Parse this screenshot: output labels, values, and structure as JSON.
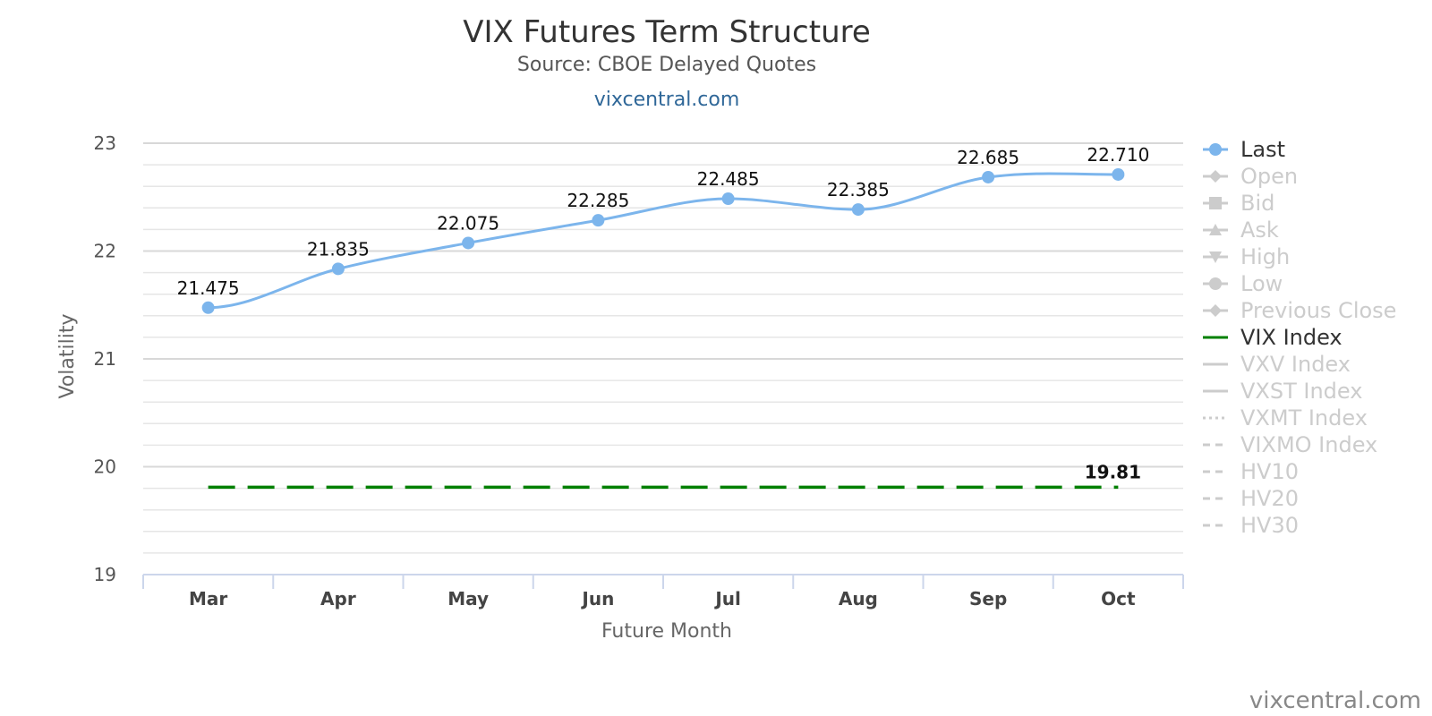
{
  "chart_data": {
    "type": "line",
    "title": "VIX Futures Term Structure",
    "subtitle": "Source: CBOE Delayed Quotes",
    "link": "vixcentral.com",
    "credit": "vixcentral.com",
    "xlabel": "Future Month",
    "ylabel": "Volatility",
    "categories": [
      "Mar",
      "Apr",
      "May",
      "Jun",
      "Jul",
      "Aug",
      "Sep",
      "Oct"
    ],
    "ylim": [
      19,
      23
    ],
    "yticks": [
      19,
      20,
      21,
      22,
      23
    ],
    "grid": true,
    "legend_position": "right",
    "series": [
      {
        "name": "Last",
        "values": [
          21.475,
          21.835,
          22.075,
          22.285,
          22.485,
          22.385,
          22.685,
          22.71
        ],
        "labels": [
          "21.475",
          "21.835",
          "22.075",
          "22.285",
          "22.485",
          "22.385",
          "22.685",
          "22.710"
        ],
        "color": "#7cb5ec",
        "style": "spline-markers"
      },
      {
        "name": "VIX Index",
        "values": [
          19.81,
          19.81,
          19.81,
          19.81,
          19.81,
          19.81,
          19.81,
          19.81
        ],
        "last_label": "19.81",
        "color": "#008000",
        "style": "dashed"
      }
    ],
    "legend": [
      {
        "name": "Last",
        "active": true,
        "symbol": "circle"
      },
      {
        "name": "Open",
        "active": false,
        "symbol": "diamond"
      },
      {
        "name": "Bid",
        "active": false,
        "symbol": "square"
      },
      {
        "name": "Ask",
        "active": false,
        "symbol": "triangle"
      },
      {
        "name": "High",
        "active": false,
        "symbol": "triangle-down"
      },
      {
        "name": "Low",
        "active": false,
        "symbol": "circle"
      },
      {
        "name": "Previous Close",
        "active": false,
        "symbol": "diamond"
      },
      {
        "name": "VIX Index",
        "active": true,
        "symbol": "line"
      },
      {
        "name": "VXV Index",
        "active": false,
        "symbol": "line"
      },
      {
        "name": "VXST Index",
        "active": false,
        "symbol": "line"
      },
      {
        "name": "VXMT Index",
        "active": false,
        "symbol": "dotted"
      },
      {
        "name": "VIXMO Index",
        "active": false,
        "symbol": "dashed"
      },
      {
        "name": "HV10",
        "active": false,
        "symbol": "dashed"
      },
      {
        "name": "HV20",
        "active": false,
        "symbol": "dashed"
      },
      {
        "name": "HV30",
        "active": false,
        "symbol": "dashed"
      }
    ],
    "colors": {
      "active_text": "#333333",
      "inactive": "#cccccc",
      "grid": "#e0e0e0",
      "axis": "#ccd6eb"
    }
  }
}
